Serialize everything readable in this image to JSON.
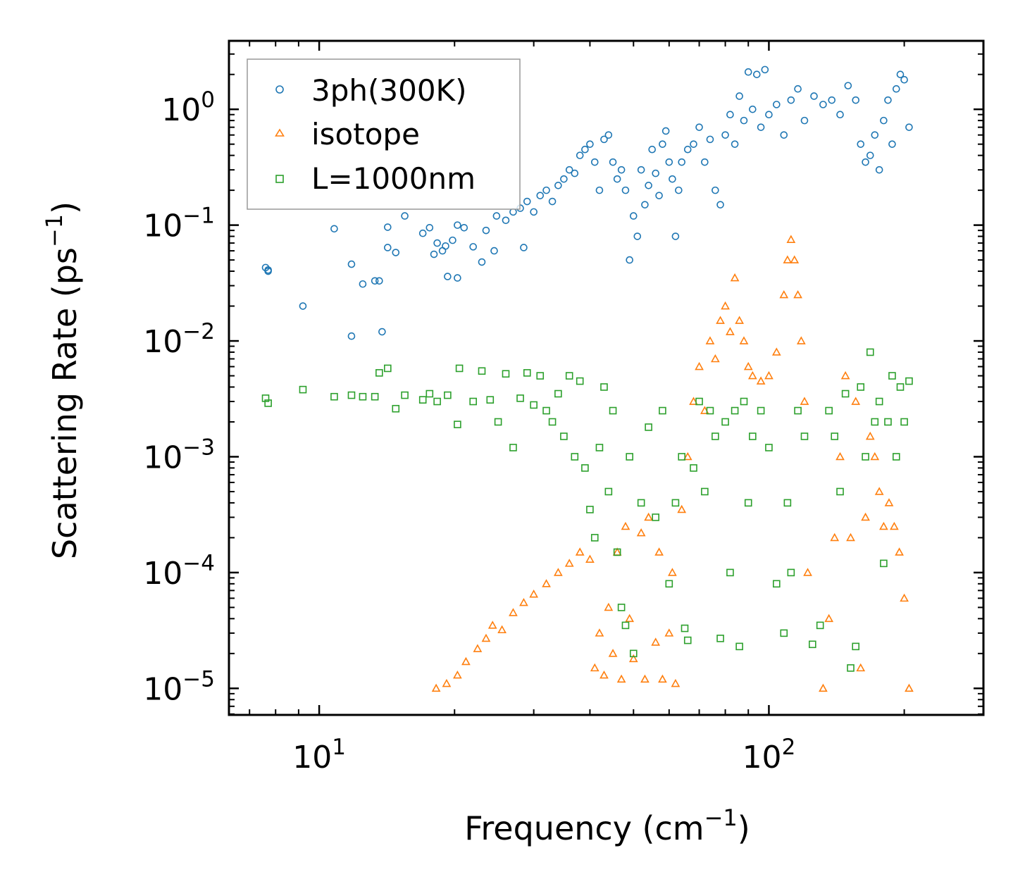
{
  "chart_data": {
    "type": "scatter",
    "title": "",
    "xlabel": "Frequency (cm⁻¹)",
    "xlabel_main": "Frequency (cm",
    "xlabel_exp": "−1",
    "xlabel_close": ")",
    "ylabel": "Scattering Rate (ps⁻¹)",
    "ylabel_main": "Scattering Rate (ps",
    "ylabel_exp": "−1",
    "ylabel_close": ")",
    "xscale": "log",
    "yscale": "log",
    "xlim": [
      6.3,
      300
    ],
    "ylim": [
      5.9e-06,
      3.9
    ],
    "x_ticks": [
      {
        "value": 10,
        "base": "10",
        "exp": "1"
      },
      {
        "value": 100,
        "base": "10",
        "exp": "2"
      }
    ],
    "y_ticks": [
      {
        "value": 1,
        "base": "10",
        "exp": "0"
      },
      {
        "value": 0.1,
        "base": "10",
        "exp": "−1"
      },
      {
        "value": 0.01,
        "base": "10",
        "exp": "−2"
      },
      {
        "value": 0.001,
        "base": "10",
        "exp": "−3"
      },
      {
        "value": 0.0001,
        "base": "10",
        "exp": "−4"
      },
      {
        "value": 1e-05,
        "base": "10",
        "exp": "−5"
      }
    ],
    "legend_position": "top-left",
    "series": [
      {
        "name": "3ph(300K)",
        "marker": "circle",
        "color": "#1f77b4",
        "points": [
          [
            7.6,
            0.043
          ],
          [
            7.7,
            0.041
          ],
          [
            7.7,
            0.04
          ],
          [
            9.2,
            0.02
          ],
          [
            10.8,
            0.093
          ],
          [
            11.8,
            0.046
          ],
          [
            11.8,
            0.011
          ],
          [
            12.5,
            0.031
          ],
          [
            13.3,
            0.033
          ],
          [
            13.6,
            0.033
          ],
          [
            13.8,
            0.012
          ],
          [
            14.2,
            0.096
          ],
          [
            14.2,
            0.064
          ],
          [
            14.8,
            0.058
          ],
          [
            15.5,
            0.12
          ],
          [
            17.0,
            0.085
          ],
          [
            17.6,
            0.095
          ],
          [
            18.0,
            0.056
          ],
          [
            18.3,
            0.07
          ],
          [
            18.8,
            0.06
          ],
          [
            19.1,
            0.066
          ],
          [
            19.3,
            0.036
          ],
          [
            19.8,
            0.074
          ],
          [
            20.3,
            0.035
          ],
          [
            20.3,
            0.1
          ],
          [
            21.0,
            0.095
          ],
          [
            22.0,
            0.065
          ],
          [
            23.0,
            0.048
          ],
          [
            23.5,
            0.09
          ],
          [
            24.5,
            0.06
          ],
          [
            24.8,
            0.12
          ],
          [
            26.0,
            0.11
          ],
          [
            27.0,
            0.13
          ],
          [
            28.0,
            0.14
          ],
          [
            28.5,
            0.064
          ],
          [
            29.0,
            0.16
          ],
          [
            30.0,
            0.13
          ],
          [
            31.0,
            0.18
          ],
          [
            32.0,
            0.2
          ],
          [
            33.0,
            0.16
          ],
          [
            34.0,
            0.22
          ],
          [
            35.0,
            0.25
          ],
          [
            36.0,
            0.3
          ],
          [
            37.0,
            0.28
          ],
          [
            38.0,
            0.4
          ],
          [
            39.0,
            0.45
          ],
          [
            40.0,
            0.5
          ],
          [
            41.0,
            0.35
          ],
          [
            42.0,
            0.2
          ],
          [
            43.0,
            0.55
          ],
          [
            44.0,
            0.6
          ],
          [
            45.0,
            0.35
          ],
          [
            46.0,
            0.25
          ],
          [
            47.0,
            0.3
          ],
          [
            48.0,
            0.2
          ],
          [
            49.0,
            0.05
          ],
          [
            50.0,
            0.12
          ],
          [
            51.0,
            0.08
          ],
          [
            52.0,
            0.3
          ],
          [
            53.0,
            0.15
          ],
          [
            54.0,
            0.22
          ],
          [
            55.0,
            0.45
          ],
          [
            56.0,
            0.28
          ],
          [
            57.0,
            0.18
          ],
          [
            58.0,
            0.5
          ],
          [
            59.0,
            0.65
          ],
          [
            60.0,
            0.35
          ],
          [
            61.0,
            0.25
          ],
          [
            62.0,
            0.08
          ],
          [
            63.0,
            0.2
          ],
          [
            64.0,
            0.35
          ],
          [
            66.0,
            0.45
          ],
          [
            68.0,
            0.5
          ],
          [
            70.0,
            0.7
          ],
          [
            72.0,
            0.35
          ],
          [
            74.0,
            0.55
          ],
          [
            76.0,
            0.2
          ],
          [
            78.0,
            0.15
          ],
          [
            80.0,
            0.6
          ],
          [
            82.0,
            0.9
          ],
          [
            84.0,
            0.5
          ],
          [
            86.0,
            1.3
          ],
          [
            88.0,
            0.8
          ],
          [
            90.0,
            2.1
          ],
          [
            92.0,
            1.0
          ],
          [
            94.0,
            2.0
          ],
          [
            96.0,
            0.7
          ],
          [
            98.0,
            2.2
          ],
          [
            100.0,
            0.9
          ],
          [
            104.0,
            1.1
          ],
          [
            108.0,
            0.6
          ],
          [
            112.0,
            1.2
          ],
          [
            116.0,
            1.5
          ],
          [
            120.0,
            0.8
          ],
          [
            126.0,
            1.3
          ],
          [
            132.0,
            1.1
          ],
          [
            138.0,
            1.2
          ],
          [
            144.0,
            0.9
          ],
          [
            150.0,
            1.6
          ],
          [
            156.0,
            1.2
          ],
          [
            160.0,
            0.5
          ],
          [
            164.0,
            0.35
          ],
          [
            168.0,
            0.4
          ],
          [
            172.0,
            0.6
          ],
          [
            176.0,
            0.3
          ],
          [
            180.0,
            0.8
          ],
          [
            184.0,
            1.2
          ],
          [
            188.0,
            0.5
          ],
          [
            192.0,
            1.5
          ],
          [
            196.0,
            2.0
          ],
          [
            200.0,
            1.8
          ],
          [
            205.0,
            0.7
          ]
        ]
      },
      {
        "name": "isotope",
        "marker": "triangle",
        "color": "#ff7f0e",
        "points": [
          [
            18.2,
            1e-05
          ],
          [
            19.2,
            1.1e-05
          ],
          [
            20.3,
            1.3e-05
          ],
          [
            21.2,
            1.7e-05
          ],
          [
            22.5,
            2.2e-05
          ],
          [
            23.5,
            2.7e-05
          ],
          [
            24.3,
            3.5e-05
          ],
          [
            25.5,
            3.2e-05
          ],
          [
            27.0,
            4.5e-05
          ],
          [
            28.5,
            5.5e-05
          ],
          [
            30.0,
            6.5e-05
          ],
          [
            32.0,
            8e-05
          ],
          [
            34.0,
            0.0001
          ],
          [
            36.0,
            0.00012
          ],
          [
            38.0,
            0.00015
          ],
          [
            40.0,
            0.00013
          ],
          [
            41.0,
            1.5e-05
          ],
          [
            42.0,
            3e-05
          ],
          [
            43.0,
            1.3e-05
          ],
          [
            44.0,
            5e-05
          ],
          [
            45.0,
            2e-05
          ],
          [
            46.0,
            0.00015
          ],
          [
            47.0,
            1.2e-05
          ],
          [
            48.0,
            0.00025
          ],
          [
            49.0,
            4e-05
          ],
          [
            50.0,
            1.8e-05
          ],
          [
            52.0,
            0.00022
          ],
          [
            53.0,
            1.2e-05
          ],
          [
            54.0,
            0.0003
          ],
          [
            56.0,
            2.5e-05
          ],
          [
            57.0,
            0.00015
          ],
          [
            58.0,
            1.2e-05
          ],
          [
            60.0,
            3e-05
          ],
          [
            61.0,
            0.0001
          ],
          [
            62.0,
            1.1e-05
          ],
          [
            64.0,
            0.00035
          ],
          [
            66.0,
            0.001
          ],
          [
            68.0,
            0.003
          ],
          [
            70.0,
            0.006
          ],
          [
            72.0,
            0.0025
          ],
          [
            74.0,
            0.01
          ],
          [
            76.0,
            0.007
          ],
          [
            78.0,
            0.015
          ],
          [
            80.0,
            0.02
          ],
          [
            82.0,
            0.012
          ],
          [
            84.0,
            0.035
          ],
          [
            86.0,
            0.015
          ],
          [
            88.0,
            0.01
          ],
          [
            90.0,
            0.006
          ],
          [
            92.0,
            0.005
          ],
          [
            96.0,
            0.0045
          ],
          [
            100.0,
            0.005
          ],
          [
            104.0,
            0.008
          ],
          [
            108.0,
            0.025
          ],
          [
            110.0,
            0.05
          ],
          [
            112.0,
            0.075
          ],
          [
            114.0,
            0.05
          ],
          [
            116.0,
            0.025
          ],
          [
            118.0,
            0.01
          ],
          [
            120.0,
            0.003
          ],
          [
            122.0,
            0.0001
          ],
          [
            132.0,
            1e-05
          ],
          [
            136.0,
            4e-05
          ],
          [
            140.0,
            0.0002
          ],
          [
            144.0,
            0.001
          ],
          [
            148.0,
            0.005
          ],
          [
            152.0,
            0.0002
          ],
          [
            156.0,
            0.003
          ],
          [
            160.0,
            1.5e-05
          ],
          [
            164.0,
            0.0003
          ],
          [
            168.0,
            0.0015
          ],
          [
            172.0,
            0.001
          ],
          [
            176.0,
            0.0005
          ],
          [
            180.0,
            0.00025
          ],
          [
            185.0,
            0.0004
          ],
          [
            190.0,
            0.00025
          ],
          [
            195.0,
            0.00015
          ],
          [
            200.0,
            6e-05
          ],
          [
            205.0,
            1e-05
          ]
        ]
      },
      {
        "name": "L=1000nm",
        "marker": "square",
        "color": "#2ca02c",
        "points": [
          [
            7.6,
            0.0032
          ],
          [
            7.7,
            0.0029
          ],
          [
            9.2,
            0.0038
          ],
          [
            10.8,
            0.0033
          ],
          [
            11.8,
            0.0034
          ],
          [
            12.5,
            0.0033
          ],
          [
            13.3,
            0.0033
          ],
          [
            13.6,
            0.0053
          ],
          [
            14.2,
            0.0058
          ],
          [
            14.8,
            0.0026
          ],
          [
            15.5,
            0.0034
          ],
          [
            17.0,
            0.0031
          ],
          [
            17.6,
            0.0035
          ],
          [
            18.3,
            0.003
          ],
          [
            19.3,
            0.0034
          ],
          [
            20.3,
            0.0019
          ],
          [
            20.5,
            0.0058
          ],
          [
            22.0,
            0.003
          ],
          [
            23.0,
            0.0055
          ],
          [
            24.0,
            0.0031
          ],
          [
            25.0,
            0.002
          ],
          [
            26.0,
            0.0052
          ],
          [
            27.0,
            0.0012
          ],
          [
            28.0,
            0.0032
          ],
          [
            29.0,
            0.0053
          ],
          [
            30.0,
            0.0028
          ],
          [
            31.0,
            0.005
          ],
          [
            32.0,
            0.0025
          ],
          [
            33.0,
            0.002
          ],
          [
            34.0,
            0.0035
          ],
          [
            35.0,
            0.0015
          ],
          [
            36.0,
            0.005
          ],
          [
            37.0,
            0.001
          ],
          [
            38.0,
            0.0045
          ],
          [
            39.0,
            0.0008
          ],
          [
            40.0,
            0.00035
          ],
          [
            41.0,
            0.0002
          ],
          [
            42.0,
            0.0012
          ],
          [
            43.0,
            0.004
          ],
          [
            44.0,
            0.0005
          ],
          [
            45.0,
            0.0025
          ],
          [
            46.0,
            0.00015
          ],
          [
            47.0,
            5e-05
          ],
          [
            48.0,
            3.5e-05
          ],
          [
            49.0,
            0.001
          ],
          [
            50.0,
            2e-05
          ],
          [
            52.0,
            0.0004
          ],
          [
            54.0,
            0.0018
          ],
          [
            56.0,
            0.0003
          ],
          [
            58.0,
            0.0025
          ],
          [
            60.0,
            8e-05
          ],
          [
            62.0,
            0.0004
          ],
          [
            64.0,
            0.001
          ],
          [
            65.0,
            3.3e-05
          ],
          [
            66.0,
            2.6e-05
          ],
          [
            68.0,
            0.0008
          ],
          [
            70.0,
            0.003
          ],
          [
            72.0,
            0.0005
          ],
          [
            74.0,
            0.0025
          ],
          [
            76.0,
            0.0015
          ],
          [
            78.0,
            2.7e-05
          ],
          [
            80.0,
            0.002
          ],
          [
            82.0,
            0.0001
          ],
          [
            84.0,
            0.0025
          ],
          [
            86.0,
            2.3e-05
          ],
          [
            88.0,
            0.003
          ],
          [
            90.0,
            0.0004
          ],
          [
            92.0,
            0.0015
          ],
          [
            96.0,
            0.0025
          ],
          [
            100.0,
            0.0012
          ],
          [
            104.0,
            8e-05
          ],
          [
            108.0,
            3e-05
          ],
          [
            110.0,
            0.0004
          ],
          [
            112.0,
            0.0001
          ],
          [
            116.0,
            0.0025
          ],
          [
            120.0,
            0.0015
          ],
          [
            125.0,
            2.4e-05
          ],
          [
            130.0,
            3.5e-05
          ],
          [
            136.0,
            0.0025
          ],
          [
            140.0,
            0.0015
          ],
          [
            144.0,
            0.0005
          ],
          [
            148.0,
            0.0035
          ],
          [
            152.0,
            1.5e-05
          ],
          [
            156.0,
            2.3e-05
          ],
          [
            160.0,
            0.004
          ],
          [
            164.0,
            0.001
          ],
          [
            168.0,
            0.008
          ],
          [
            172.0,
            0.002
          ],
          [
            176.0,
            0.003
          ],
          [
            180.0,
            0.00012
          ],
          [
            184.0,
            0.002
          ],
          [
            188.0,
            0.005
          ],
          [
            192.0,
            0.001
          ],
          [
            196.0,
            0.004
          ],
          [
            200.0,
            0.002
          ],
          [
            205.0,
            0.0045
          ]
        ]
      }
    ]
  }
}
